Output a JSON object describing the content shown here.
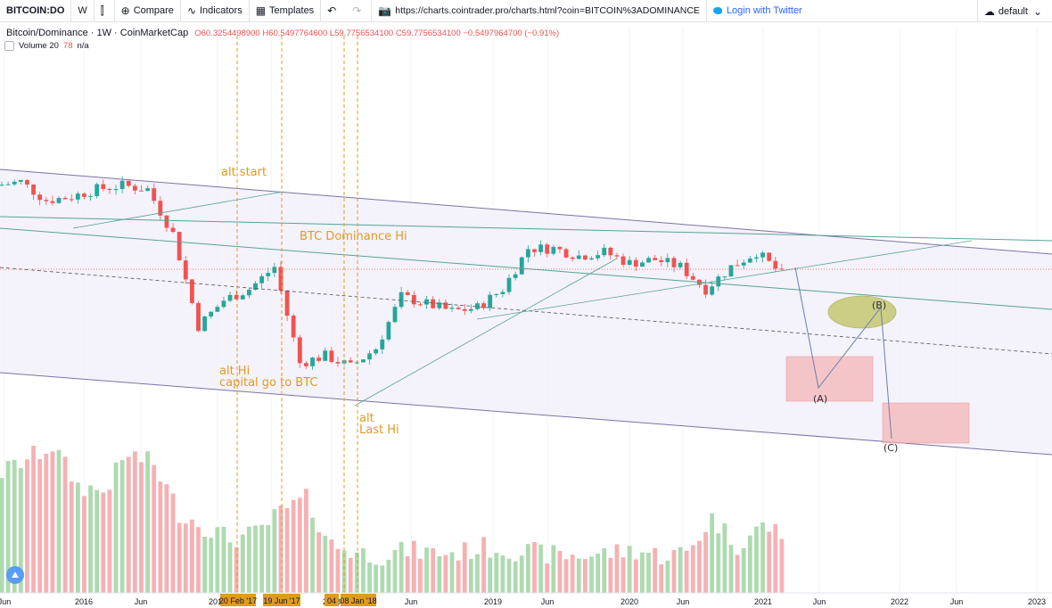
{
  "toolbar": {
    "symbol": "BITCOIN:DO",
    "interval": "W",
    "compare": "Compare",
    "indicators": "Indicators",
    "templates": "Templates",
    "url": "https://charts.cointrader.pro/charts.html?coin=BITCOIN%3ADOMINANCE",
    "login": "Login with Twitter",
    "layout": "default"
  },
  "legend": {
    "title": "Bitcoin/Dominance · 1W · CoinMarketCap",
    "ohlc": "O60.3254498900 H60.5497764600 L59.7756534100 C59.7756534100 −0.5497964700 (−0.91%)",
    "volume_label": "Volume 20",
    "volume_value": "78",
    "volume_na": "n/a"
  },
  "annotations": [
    {
      "id": "alt-start",
      "text": "alt start"
    },
    {
      "id": "btc-dominance-hi",
      "text": "BTC Dominance Hi"
    },
    {
      "id": "alt-hi",
      "text": "alt Hi"
    },
    {
      "id": "capital-go",
      "text": "capital go to BTC"
    },
    {
      "id": "alt",
      "text": "alt"
    },
    {
      "id": "last-hi",
      "text": "Last Hi"
    }
  ],
  "waves": [
    "(A)",
    "(B)",
    "(C)"
  ],
  "chart_data": {
    "type": "candlestick",
    "title": "Bitcoin/Dominance · 1W · CoinMarketCap",
    "x_ticks": [
      "Jun",
      "2016",
      "Jun",
      "2017",
      "Jun",
      "2018",
      "Jun",
      "2019",
      "Jun",
      "2020",
      "Jun",
      "2021",
      "Jun",
      "2022",
      "Jun",
      "2023"
    ],
    "date_markers": [
      "20 Feb '17",
      "19 Jun '17",
      "04",
      "08 Jan '18"
    ],
    "series": [
      {
        "name": "Bitcoin/Dominance",
        "dates": [
          "2015-10",
          "2016-01",
          "2016-04",
          "2016-07",
          "2016-10",
          "2017-01",
          "2017-02",
          "2017-04",
          "2017-06",
          "2017-08",
          "2017-10",
          "2017-12",
          "2018-01",
          "2018-03",
          "2018-05",
          "2018-07",
          "2018-09",
          "2018-11",
          "2019-01",
          "2019-03",
          "2019-05",
          "2019-07",
          "2019-09",
          "2019-11",
          "2020-01",
          "2020-03",
          "2020-05",
          "2020-07",
          "2020-09",
          "2020-11",
          "2021-01",
          "2021-03"
        ],
        "values": [
          86,
          87,
          82,
          83,
          85,
          86,
          85,
          73,
          48,
          55,
          58,
          64,
          38,
          40,
          37,
          42,
          56,
          54,
          52,
          53,
          58,
          69,
          69,
          67,
          68,
          65,
          66,
          64,
          58,
          64,
          68,
          62
        ]
      },
      {
        "name": "Volume",
        "values": [
          45,
          50,
          55,
          40,
          38,
          52,
          48,
          30,
          25,
          20,
          22,
          30,
          35,
          18,
          15,
          14,
          16,
          15,
          15,
          17,
          16,
          15,
          14,
          14,
          15,
          16,
          14,
          15,
          28,
          18,
          25,
          22
        ]
      }
    ],
    "grid": true
  }
}
